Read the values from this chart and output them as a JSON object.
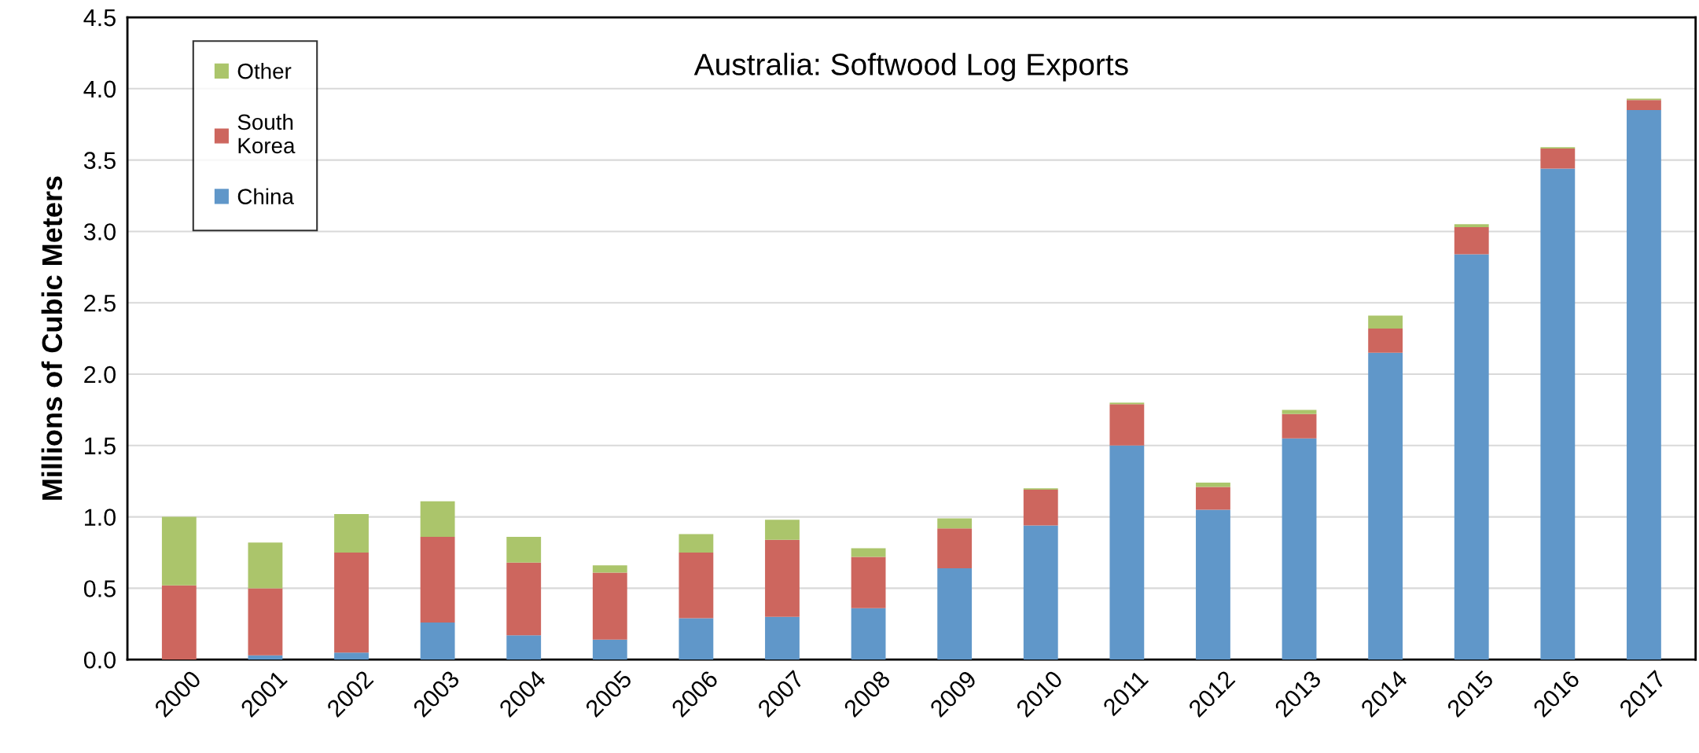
{
  "chart_data": {
    "type": "bar",
    "title": "Australia: Softwood Log Exports",
    "ylabel": "Millions of Cubic Meters",
    "categories": [
      "2000",
      "2001",
      "2002",
      "2003",
      "2004",
      "2005",
      "2006",
      "2007",
      "2008",
      "2009",
      "2010",
      "2011",
      "2012",
      "2013",
      "2014",
      "2015",
      "2016",
      "2017"
    ],
    "stacked": true,
    "series": [
      {
        "name": "China",
        "color": "#6097c9",
        "values": [
          0,
          0.03,
          0.05,
          0.26,
          0.17,
          0.14,
          0.29,
          0.3,
          0.36,
          0.64,
          0.94,
          1.5,
          1.05,
          1.55,
          2.15,
          2.84,
          3.44,
          3.85
        ]
      },
      {
        "name": "South\nKorea",
        "color": "#cd665e",
        "values": [
          0.52,
          0.47,
          0.7,
          0.6,
          0.51,
          0.47,
          0.46,
          0.54,
          0.36,
          0.28,
          0.25,
          0.29,
          0.16,
          0.17,
          0.17,
          0.19,
          0.14,
          0.07
        ]
      },
      {
        "name": "Other",
        "color": "#abc56b",
        "values": [
          0.48,
          0.32,
          0.27,
          0.25,
          0.18,
          0.05,
          0.13,
          0.14,
          0.06,
          0.07,
          0.01,
          0.01,
          0.03,
          0.03,
          0.09,
          0.02,
          0.01,
          0.01
        ]
      }
    ],
    "ylim": [
      0,
      4.5
    ],
    "yticks": [
      {
        "value": 0,
        "label": "0.0"
      },
      {
        "value": 0.5,
        "label": "0.5"
      },
      {
        "value": 1,
        "label": "1.0"
      },
      {
        "value": 1.5,
        "label": "1.5"
      },
      {
        "value": 2,
        "label": "2.0"
      },
      {
        "value": 2.5,
        "label": "2.5"
      },
      {
        "value": 3,
        "label": "3.0"
      },
      {
        "value": 3.5,
        "label": "3.5"
      },
      {
        "value": 4,
        "label": "4.0"
      },
      {
        "value": 4.5,
        "label": "4.5"
      }
    ],
    "grid": "y",
    "legend": "top left"
  }
}
